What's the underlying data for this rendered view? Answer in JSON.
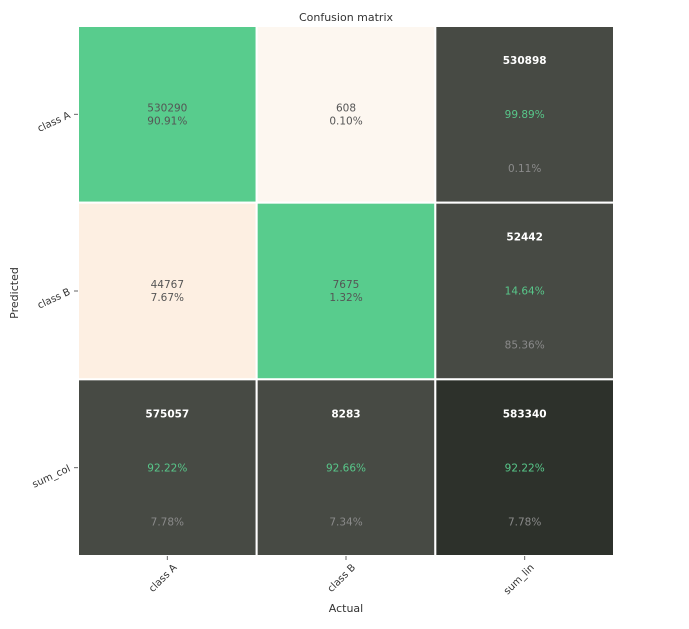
{
  "chart_data": {
    "type": "heatmap",
    "title": "Confusion matrix",
    "xlabel": "Actual",
    "ylabel": "Predicted",
    "x_categories": [
      "class A",
      "class B",
      "sum_lin"
    ],
    "y_categories": [
      "class A",
      "class B",
      "sum_col"
    ],
    "cells": [
      [
        {
          "kind": "data",
          "count": "530290",
          "pct": "90.91%",
          "fill": "#58cc8d"
        },
        {
          "kind": "data",
          "count": "608",
          "pct": "0.10%",
          "fill": "#fdf7f0"
        },
        {
          "kind": "sum",
          "count": "530898",
          "good": "99.89%",
          "bad": "0.11%",
          "fill": "#474a44"
        }
      ],
      [
        {
          "kind": "data",
          "count": "44767",
          "pct": "7.67%",
          "fill": "#fdefe2"
        },
        {
          "kind": "data",
          "count": "7675",
          "pct": "1.32%",
          "fill": "#58cc8d"
        },
        {
          "kind": "sum",
          "count": "52442",
          "good": "14.64%",
          "bad": "85.36%",
          "fill": "#474a44"
        }
      ],
      [
        {
          "kind": "sum",
          "count": "575057",
          "good": "92.22%",
          "bad": "7.78%",
          "fill": "#474a44"
        },
        {
          "kind": "sum",
          "count": "8283",
          "good": "92.66%",
          "bad": "7.34%",
          "fill": "#474a44"
        },
        {
          "kind": "sum",
          "count": "583340",
          "good": "92.22%",
          "bad": "7.78%",
          "fill": "#2d312b"
        }
      ]
    ],
    "colors": {
      "data_text": "#555555",
      "sum_count": "#ffffff",
      "sum_good": "#58c78a",
      "sum_bad": "#8a8a8a",
      "grid_line": "#ffffff",
      "axis_text": "#333333"
    }
  }
}
